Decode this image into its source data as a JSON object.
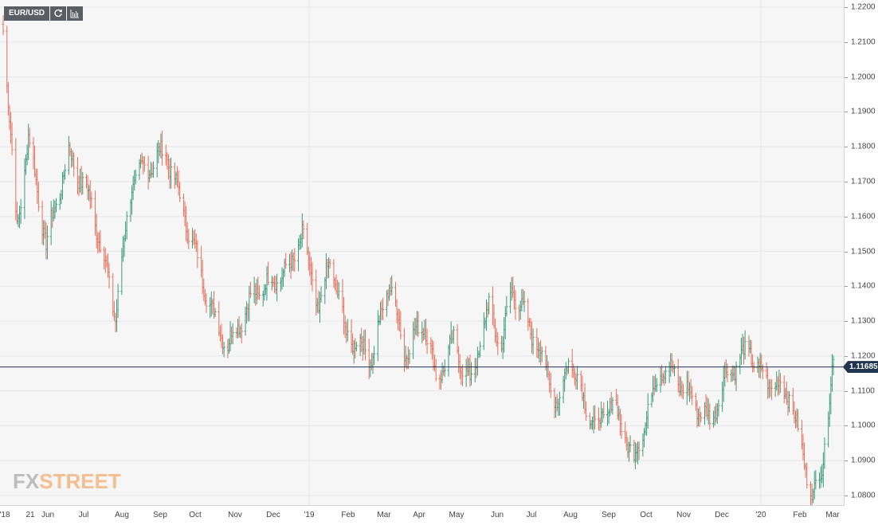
{
  "toolbar": {
    "pair_label": "EUR/USD",
    "refresh_icon": "refresh-icon",
    "chart_type_icon": "bar-chart-icon"
  },
  "watermark": {
    "fx": "FX",
    "street": "STREET"
  },
  "price_badge": "1.11685",
  "colors": {
    "up": "#3f9b7d",
    "down": "#e1715c",
    "price_line": "#203550",
    "grid": "#e3e6ea"
  },
  "chart_data": {
    "type": "ohlc",
    "title": "EUR/USD",
    "ylim": [
      1.0778,
      1.2208
    ],
    "y_ticks": [
      "1.2200",
      "1.2100",
      "1.2000",
      "1.1900",
      "1.1800",
      "1.1700",
      "1.1600",
      "1.1500",
      "1.1400",
      "1.1300",
      "1.1200",
      "1.1100",
      "1.1000",
      "1.0900",
      "1.0800"
    ],
    "x_labels": [
      "'18",
      "21",
      "Jun",
      "Jul",
      "Aug",
      "Sep",
      "Oct",
      "Nov",
      "Dec",
      "'19",
      "Feb",
      "Mar",
      "Apr",
      "May",
      "Jun",
      "Jul",
      "Aug",
      "Sep",
      "Oct",
      "Nov",
      "Dec",
      "'20",
      "Feb",
      "Mar"
    ],
    "current_price": 1.11685,
    "grid": true,
    "series_anchors": [
      [
        "2018-05-18",
        1.215
      ],
      [
        "2018-05-29",
        1.156
      ],
      [
        "2018-06-07",
        1.183
      ],
      [
        "2018-06-21",
        1.152
      ],
      [
        "2018-07-09",
        1.178
      ],
      [
        "2018-07-27",
        1.164
      ],
      [
        "2018-08-15",
        1.132
      ],
      [
        "2018-08-28",
        1.17
      ],
      [
        "2018-09-24",
        1.179
      ],
      [
        "2018-10-31",
        1.132
      ],
      [
        "2018-11-12",
        1.123
      ],
      [
        "2018-12-03",
        1.138
      ],
      [
        "2018-12-31",
        1.145
      ],
      [
        "2019-01-10",
        1.155
      ],
      [
        "2019-01-23",
        1.133
      ],
      [
        "2019-02-01",
        1.148
      ],
      [
        "2019-02-14",
        1.126
      ],
      [
        "2019-03-07",
        1.12
      ],
      [
        "2019-03-20",
        1.142
      ],
      [
        "2019-04-01",
        1.121
      ],
      [
        "2019-04-17",
        1.13
      ],
      [
        "2019-04-26",
        1.113
      ],
      [
        "2019-05-10",
        1.124
      ],
      [
        "2019-05-23",
        1.112
      ],
      [
        "2019-06-07",
        1.134
      ],
      [
        "2019-06-17",
        1.122
      ],
      [
        "2019-06-25",
        1.14
      ],
      [
        "2019-07-18",
        1.121
      ],
      [
        "2019-08-01",
        1.105
      ],
      [
        "2019-08-09",
        1.12
      ],
      [
        "2019-08-30",
        1.099
      ],
      [
        "2019-09-13",
        1.107
      ],
      [
        "2019-09-30",
        1.09
      ],
      [
        "2019-10-21",
        1.117
      ],
      [
        "2019-10-31",
        1.115
      ],
      [
        "2019-11-29",
        1.101
      ],
      [
        "2019-12-13",
        1.115
      ],
      [
        "2019-12-31",
        1.122
      ],
      [
        "2020-01-07",
        1.115
      ],
      [
        "2020-01-31",
        1.109
      ],
      [
        "2020-02-19",
        1.079
      ],
      [
        "2020-02-26",
        1.088
      ],
      [
        "2020-03-06",
        1.119
      ]
    ]
  }
}
